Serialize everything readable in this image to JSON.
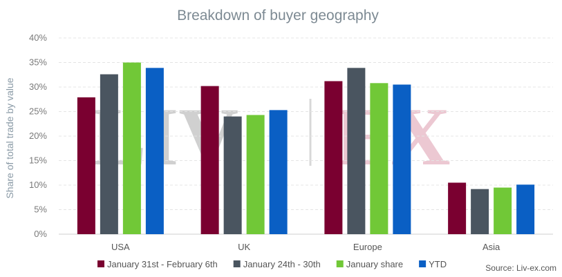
{
  "chart_data": {
    "type": "bar",
    "title": "Breakdown of buyer geography",
    "ylabel": "Share of total trade by value",
    "xlabel": "",
    "ylim": [
      0,
      40
    ],
    "yticks": [
      "0%",
      "5%",
      "10%",
      "15%",
      "20%",
      "25%",
      "30%",
      "35%",
      "40%"
    ],
    "categories": [
      "USA",
      "UK",
      "Europe",
      "Asia"
    ],
    "series": [
      {
        "name": "January 31st - February 6th",
        "color": "#7a0030",
        "values": [
          27.9,
          30.2,
          31.2,
          10.5
        ]
      },
      {
        "name": "January 24th - 30th",
        "color": "#4a5560",
        "values": [
          32.6,
          24.0,
          33.9,
          9.2
        ]
      },
      {
        "name": "January share",
        "color": "#71c837",
        "values": [
          35.0,
          24.3,
          30.8,
          9.5
        ]
      },
      {
        "name": "YTD",
        "color": "#0a5fc4",
        "values": [
          33.9,
          25.3,
          30.5,
          10.1
        ]
      }
    ],
    "grid": true,
    "legend_position": "bottom"
  },
  "watermark": {
    "left": "LIV",
    "right": "EX"
  },
  "source": "Source: Liv-ex.com"
}
